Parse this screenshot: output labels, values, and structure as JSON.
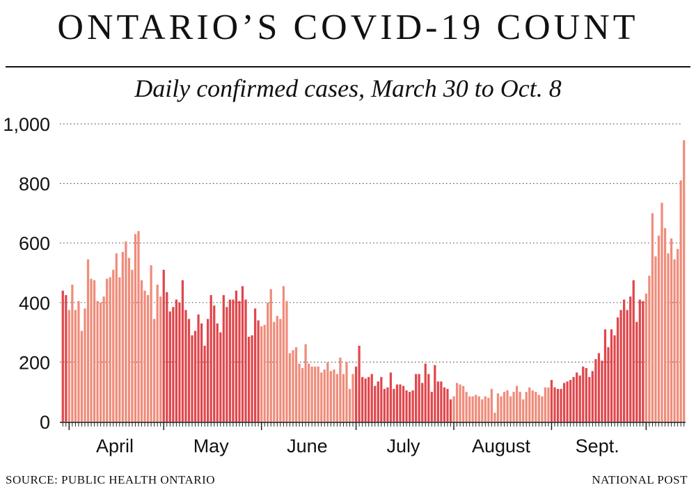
{
  "title": "ONTARIO’S COVID-19 COUNT",
  "subtitle": "Daily confirmed cases, March 30 to Oct. 8",
  "source": "SOURCE: PUBLIC HEALTH ONTARIO",
  "credit": "NATIONAL POST",
  "colors": {
    "dark": "#e0474c",
    "light": "#ef8c7b",
    "grid": "#555555",
    "axis": "#111111"
  },
  "chart_data": {
    "type": "bar",
    "x_start": "March 30",
    "x_end": "Oct. 8",
    "ylim": [
      0,
      1000
    ],
    "yticks": [
      0,
      200,
      400,
      600,
      800,
      1000
    ],
    "ytick_labels": [
      "0",
      "200",
      "400",
      "600",
      "800",
      "1,000"
    ],
    "grid": "horizontal dotted",
    "months": [
      {
        "label": "April",
        "days": 30,
        "shade": "light"
      },
      {
        "label": "May",
        "days": 31,
        "shade": "dark"
      },
      {
        "label": "June",
        "days": 30,
        "shade": "light"
      },
      {
        "label": "July",
        "days": 31,
        "shade": "dark"
      },
      {
        "label": "August",
        "days": 31,
        "shade": "light"
      },
      {
        "label": "Sept.",
        "days": 30,
        "shade": "dark"
      },
      {
        "label": "",
        "days": 8,
        "shade": "light"
      }
    ],
    "values": [
      440,
      425,
      375,
      460,
      375,
      405,
      305,
      380,
      545,
      480,
      475,
      405,
      400,
      420,
      480,
      485,
      510,
      565,
      485,
      570,
      605,
      550,
      510,
      630,
      640,
      475,
      440,
      425,
      525,
      345,
      460,
      420,
      510,
      435,
      370,
      385,
      410,
      400,
      475,
      375,
      345,
      290,
      305,
      360,
      330,
      255,
      345,
      425,
      390,
      330,
      300,
      425,
      385,
      410,
      410,
      440,
      405,
      455,
      410,
      285,
      290,
      380,
      340,
      320,
      325,
      400,
      445,
      335,
      355,
      345,
      455,
      405,
      230,
      240,
      250,
      195,
      180,
      260,
      195,
      185,
      185,
      185,
      165,
      175,
      200,
      170,
      175,
      160,
      215,
      160,
      200,
      110,
      160,
      185,
      255,
      150,
      145,
      150,
      160,
      120,
      135,
      150,
      110,
      115,
      165,
      110,
      125,
      125,
      120,
      105,
      100,
      105,
      160,
      160,
      130,
      195,
      160,
      100,
      190,
      135,
      135,
      115,
      110,
      75,
      85,
      130,
      125,
      120,
      100,
      85,
      85,
      90,
      85,
      75,
      85,
      80,
      110,
      30,
      95,
      85,
      100,
      105,
      85,
      100,
      120,
      100,
      75,
      100,
      115,
      105,
      100,
      90,
      85,
      115,
      115,
      140,
      115,
      110,
      110,
      130,
      135,
      140,
      150,
      165,
      155,
      185,
      180,
      150,
      170,
      210,
      230,
      205,
      310,
      250,
      310,
      290,
      350,
      375,
      410,
      375,
      420,
      475,
      335,
      410,
      405,
      430,
      490,
      700,
      555,
      625,
      735,
      650,
      565,
      615,
      545,
      580,
      810,
      945
    ]
  }
}
